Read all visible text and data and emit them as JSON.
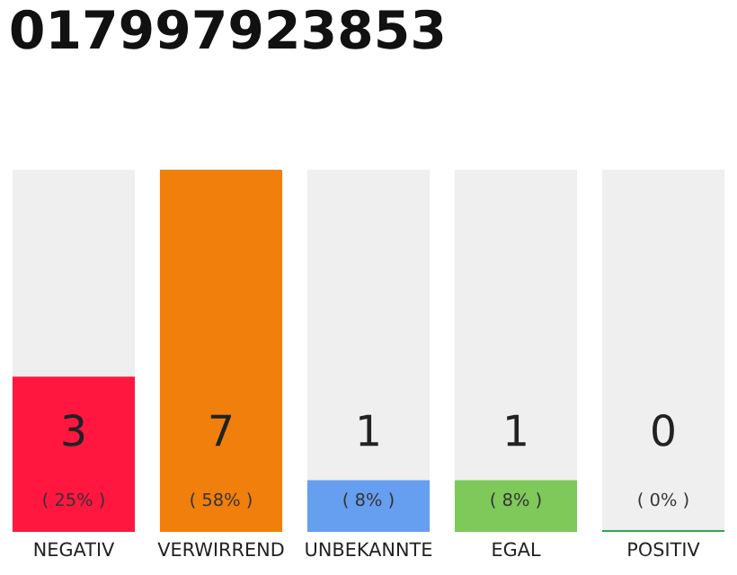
{
  "chart_data": {
    "type": "bar",
    "title": "017997923853",
    "categories": [
      "NEGATIV",
      "VERWIRREND",
      "UNBEKANNTE",
      "EGAL",
      "POSITIV"
    ],
    "values": [
      3,
      7,
      1,
      1,
      0
    ],
    "colors": [
      "#ff173f",
      "#f07f0c",
      "#669ef0",
      "#7ec95a",
      "#2aa84a"
    ],
    "value_labels": [
      "3\n( 25% )",
      "7\n( 58% )",
      "1\n( 8% )",
      "1\n( 8% )",
      "0\n( 0% )"
    ],
    "ylim": [
      0,
      7
    ],
    "grid": false,
    "legend": false
  }
}
